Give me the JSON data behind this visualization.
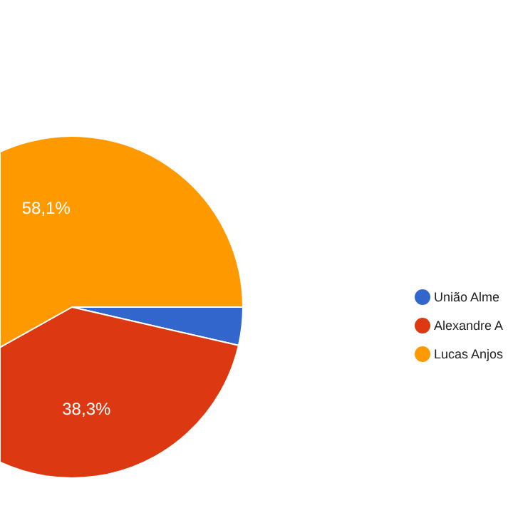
{
  "chart_data": {
    "type": "pie",
    "categories": [
      "União Alme",
      "Alexandre A",
      "Lucas Anjos"
    ],
    "values": [
      3.6,
      38.3,
      58.1
    ],
    "colors": [
      "#3366cc",
      "#dc3912",
      "#ff9900"
    ],
    "value_labels": [
      null,
      "38,3%",
      "58,1%"
    ],
    "legend": "right"
  }
}
